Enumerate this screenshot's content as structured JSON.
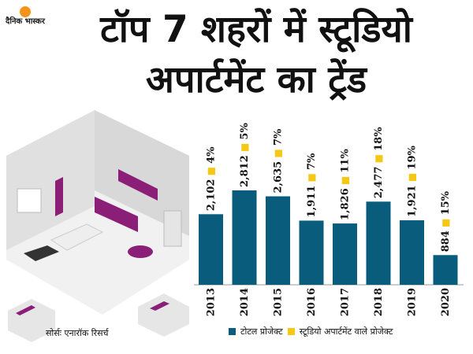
{
  "brand": {
    "logo_text": "दैनिक भास्कर",
    "accent": "#f7931d"
  },
  "title": "टॉप 7 शहरों में स्टूडियो अपार्टमेंट का ट्रेंड",
  "source": "सोर्सः एनारॉक रिसर्च",
  "colors": {
    "bar": "#0a5c7d",
    "marker": "#f5c816",
    "wall": "#e6e6e6",
    "purple": "#8b1f78"
  },
  "chart_data": {
    "type": "bar",
    "categories": [
      "2013",
      "2014",
      "2015",
      "2016",
      "2017",
      "2018",
      "2019",
      "2020"
    ],
    "series": [
      {
        "name": "टोटल प्रोजेक्ट",
        "values": [
          2102,
          2812,
          2635,
          1911,
          1826,
          2477,
          1921,
          884
        ]
      },
      {
        "name": "स्टूडियो अपार्टमेंट वाले प्रोजेक्ट",
        "values": [
          4,
          5,
          7,
          7,
          11,
          18,
          19,
          15
        ]
      }
    ],
    "value_labels": [
      "2,102",
      "2,812",
      "2,635",
      "1,911",
      "1,826",
      "2,477",
      "1,921",
      "884"
    ],
    "pct_labels": [
      "4%",
      "5%",
      "7%",
      "7%",
      "11%",
      "18%",
      "19%",
      "15%"
    ],
    "legend": [
      "टोटल प्रोजेक्ट",
      "स्टूडियो अपार्टमेंट वाले प्रोजेक्ट"
    ],
    "legend_position": "bottom",
    "ylim": [
      0,
      2812
    ]
  }
}
